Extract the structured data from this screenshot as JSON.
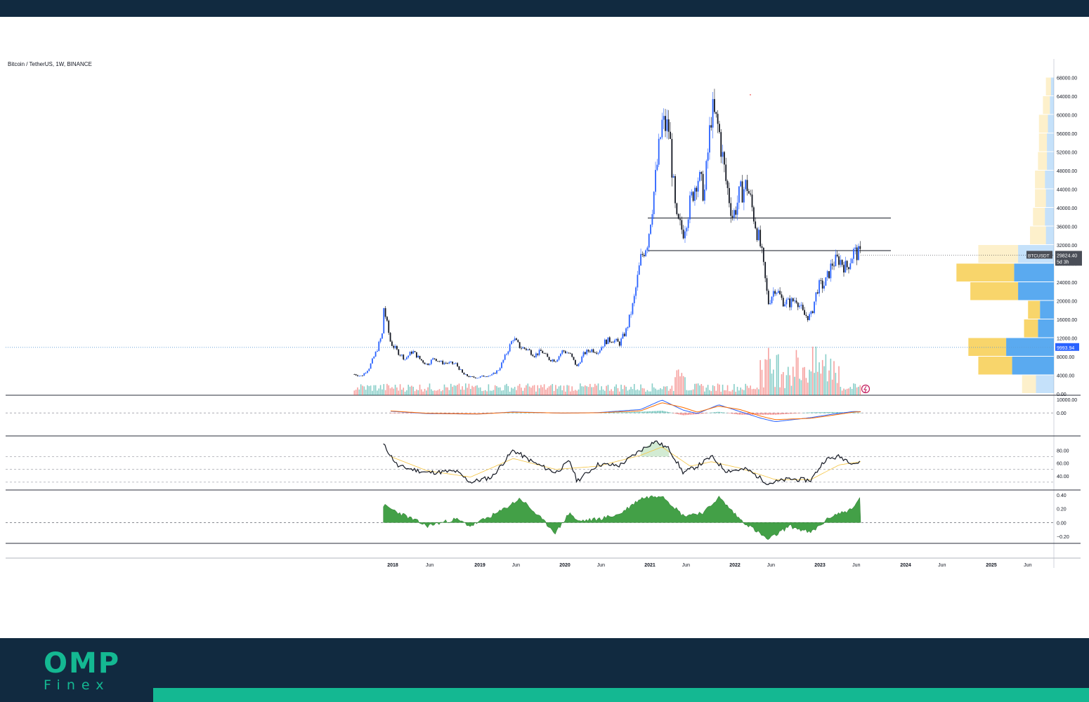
{
  "chart_data": [
    {
      "type": "candlestick",
      "title": "Bitcoin / TetherUS, 1W, BINANCE",
      "symbol": "BTCUSDT",
      "last_price_label": "29824.40",
      "countdown_label": "5d 3h",
      "ref_price_label": "9993.94",
      "ylim": [
        0,
        72000
      ],
      "y_ticks": [
        0,
        4000,
        8000,
        12000,
        16000,
        20000,
        24000,
        28000,
        32000,
        36000,
        40000,
        44000,
        48000,
        52000,
        56000,
        60000,
        64000,
        68000
      ],
      "y_tick_labels": [
        "0.00",
        "4000.00",
        "8000.00",
        "12000.00",
        "16000.00",
        "20000.00",
        "24000.00",
        "28000.00",
        "32000.00",
        "36000.00",
        "40000.00",
        "44000.00",
        "48000.00",
        "52000.00",
        "56000.00",
        "60000.00",
        "64000.00",
        "68000.00"
      ],
      "x_labels": [
        "2018",
        "Jun",
        "2019",
        "Jun",
        "2020",
        "Jun",
        "2021",
        "Jun",
        "2022",
        "Jun",
        "2023",
        "Jun",
        "2024",
        "Jun",
        "2025",
        "Jun"
      ],
      "x_label_dates": [
        "2018-01",
        "2018-06",
        "2019-01",
        "2019-06",
        "2020-01",
        "2020-06",
        "2021-01",
        "2021-06",
        "2022-01",
        "2022-06",
        "2023-01",
        "2023-06",
        "2024-01",
        "2024-06",
        "2025-01",
        "2025-06"
      ],
      "horizontal_lines": [
        37800,
        30800
      ],
      "price_path": [
        [
          "2017-08",
          4200
        ],
        [
          "2017-09",
          3800
        ],
        [
          "2017-10",
          5500
        ],
        [
          "2017-11",
          9000
        ],
        [
          "2017-12",
          13500
        ],
        [
          "2017-12",
          19000
        ],
        [
          "2018-01",
          11000
        ],
        [
          "2018-02",
          9000
        ],
        [
          "2018-03",
          7500
        ],
        [
          "2018-04",
          9200
        ],
        [
          "2018-05",
          7500
        ],
        [
          "2018-06",
          6300
        ],
        [
          "2018-07",
          7700
        ],
        [
          "2018-08",
          6700
        ],
        [
          "2018-09",
          6600
        ],
        [
          "2018-10",
          6400
        ],
        [
          "2018-11",
          4200
        ],
        [
          "2018-12",
          3600
        ],
        [
          "2019-01",
          3500
        ],
        [
          "2019-02",
          3900
        ],
        [
          "2019-03",
          4000
        ],
        [
          "2019-04",
          5300
        ],
        [
          "2019-05",
          8500
        ],
        [
          "2019-06",
          12000
        ],
        [
          "2019-07",
          10000
        ],
        [
          "2019-08",
          9600
        ],
        [
          "2019-09",
          8300
        ],
        [
          "2019-10",
          9200
        ],
        [
          "2019-11",
          7500
        ],
        [
          "2019-12",
          7200
        ],
        [
          "2020-01",
          9300
        ],
        [
          "2020-02",
          8600
        ],
        [
          "2020-03",
          5800
        ],
        [
          "2020-04",
          8700
        ],
        [
          "2020-05",
          9500
        ],
        [
          "2020-06",
          9100
        ],
        [
          "2020-07",
          11300
        ],
        [
          "2020-08",
          11700
        ],
        [
          "2020-09",
          10800
        ],
        [
          "2020-10",
          13800
        ],
        [
          "2020-11",
          19700
        ],
        [
          "2020-12",
          29000
        ],
        [
          "2021-01",
          33000
        ],
        [
          "2021-02",
          45000
        ],
        [
          "2021-03",
          58000
        ],
        [
          "2021-04",
          57000
        ],
        [
          "2021-05",
          37000
        ],
        [
          "2021-06",
          35000
        ],
        [
          "2021-07",
          41000
        ],
        [
          "2021-08",
          47000
        ],
        [
          "2021-09",
          43000
        ],
        [
          "2021-10",
          61000
        ],
        [
          "2021-11",
          57000
        ],
        [
          "2021-12",
          46000
        ],
        [
          "2022-01",
          38000
        ],
        [
          "2022-02",
          43000
        ],
        [
          "2022-03",
          45000
        ],
        [
          "2022-04",
          38000
        ],
        [
          "2022-05",
          31000
        ],
        [
          "2022-06",
          19500
        ],
        [
          "2022-07",
          23000
        ],
        [
          "2022-08",
          20000
        ],
        [
          "2022-09",
          19500
        ],
        [
          "2022-10",
          20500
        ],
        [
          "2022-11",
          17000
        ],
        [
          "2022-12",
          16500
        ],
        [
          "2023-01",
          23000
        ],
        [
          "2023-02",
          23500
        ],
        [
          "2023-03",
          28000
        ],
        [
          "2023-04",
          29000
        ],
        [
          "2023-05",
          27000
        ],
        [
          "2023-06",
          30500
        ],
        [
          "2023-07",
          29824
        ]
      ],
      "volume_profile": [
        {
          "price": 2000,
          "buy": 9000,
          "sell": 7000
        },
        {
          "price": 6000,
          "buy": 21000,
          "sell": 17000
        },
        {
          "price": 10000,
          "buy": 24000,
          "sell": 19000
        },
        {
          "price": 14000,
          "buy": 8000,
          "sell": 7000
        },
        {
          "price": 18000,
          "buy": 7000,
          "sell": 6000
        },
        {
          "price": 22000,
          "buy": 18000,
          "sell": 24000
        },
        {
          "price": 26000,
          "buy": 20000,
          "sell": 29000
        },
        {
          "price": 30000,
          "buy": 18000,
          "sell": 20000
        },
        {
          "price": 34000,
          "buy": 4000,
          "sell": 8000
        },
        {
          "price": 38000,
          "buy": 4500,
          "sell": 6000
        },
        {
          "price": 42000,
          "buy": 4000,
          "sell": 5500
        },
        {
          "price": 46000,
          "buy": 4500,
          "sell": 5000
        },
        {
          "price": 50000,
          "buy": 3500,
          "sell": 4500
        },
        {
          "price": 54000,
          "buy": 3500,
          "sell": 4000
        },
        {
          "price": 58000,
          "buy": 3000,
          "sell": 4500
        },
        {
          "price": 62000,
          "buy": 2000,
          "sell": 3500
        },
        {
          "price": 66000,
          "buy": 1500,
          "sell": 2500
        }
      ],
      "colors": {
        "up": "#2962ff",
        "down": "#131722",
        "vol_up": "#26a69a",
        "vol_down": "#ef5350",
        "profile_buy": "#5aaaf0",
        "profile_sell": "#f8d56b"
      }
    },
    {
      "type": "line",
      "indicator": "MACD",
      "ylim": [
        -16000,
        12000
      ],
      "y_ticks": [
        10000,
        0
      ],
      "y_tick_labels": [
        "10000.00",
        "0.00"
      ],
      "series": [
        {
          "values": [
            [
              "2018-01",
              1200
            ],
            [
              "2018-06",
              -500
            ],
            [
              "2019-01",
              -900
            ],
            [
              "2019-06",
              700
            ],
            [
              "2020-01",
              -200
            ],
            [
              "2020-06",
              200
            ],
            [
              "2020-12",
              2500
            ],
            [
              "2021-03",
              9500
            ],
            [
              "2021-06",
              2000
            ],
            [
              "2021-08",
              -500
            ],
            [
              "2021-11",
              6000
            ],
            [
              "2022-02",
              1000
            ],
            [
              "2022-05",
              -4000
            ],
            [
              "2022-07",
              -6500
            ],
            [
              "2022-12",
              -3500
            ],
            [
              "2023-03",
              -1000
            ],
            [
              "2023-06",
              1000
            ],
            [
              "2023-07",
              900
            ]
          ]
        },
        {
          "values": [
            [
              "2018-01",
              1400
            ],
            [
              "2018-06",
              -300
            ],
            [
              "2019-01",
              -800
            ],
            [
              "2019-06",
              500
            ],
            [
              "2020-01",
              -100
            ],
            [
              "2020-06",
              100
            ],
            [
              "2020-12",
              1500
            ],
            [
              "2021-03",
              7500
            ],
            [
              "2021-06",
              4000
            ],
            [
              "2021-08",
              500
            ],
            [
              "2021-11",
              5000
            ],
            [
              "2022-02",
              2500
            ],
            [
              "2022-05",
              -2500
            ],
            [
              "2022-07",
              -5000
            ],
            [
              "2022-12",
              -4000
            ],
            [
              "2023-03",
              -1800
            ],
            [
              "2023-06",
              600
            ],
            [
              "2023-07",
              800
            ]
          ]
        }
      ]
    },
    {
      "type": "line",
      "indicator": "RSI",
      "ylim": [
        20,
        100
      ],
      "y_ticks": [
        80,
        60,
        40
      ],
      "y_tick_labels": [
        "80.00",
        "60.00",
        "40.00"
      ],
      "bands": [
        70,
        50,
        30
      ],
      "series": [
        {
          "values": [
            [
              "2017-12",
              89
            ],
            [
              "2018-02",
              55
            ],
            [
              "2018-06",
              45
            ],
            [
              "2018-10",
              47
            ],
            [
              "2018-12",
              30
            ],
            [
              "2019-03",
              38
            ],
            [
              "2019-06",
              80
            ],
            [
              "2019-09",
              60
            ],
            [
              "2019-12",
              45
            ],
            [
              "2020-02",
              63
            ],
            [
              "2020-03",
              32
            ],
            [
              "2020-06",
              58
            ],
            [
              "2020-09",
              56
            ],
            [
              "2020-12",
              80
            ],
            [
              "2021-02",
              94
            ],
            [
              "2021-04",
              82
            ],
            [
              "2021-06",
              45
            ],
            [
              "2021-08",
              55
            ],
            [
              "2021-10",
              70
            ],
            [
              "2021-12",
              48
            ],
            [
              "2022-03",
              50
            ],
            [
              "2022-06",
              28
            ],
            [
              "2022-09",
              35
            ],
            [
              "2022-12",
              33
            ],
            [
              "2023-02",
              65
            ],
            [
              "2023-04",
              70
            ],
            [
              "2023-06",
              60
            ],
            [
              "2023-07",
              60
            ]
          ]
        },
        {
          "values": [
            [
              "2018-01",
              70
            ],
            [
              "2018-06",
              48
            ],
            [
              "2018-12",
              38
            ],
            [
              "2019-06",
              67
            ],
            [
              "2019-12",
              50
            ],
            [
              "2020-06",
              55
            ],
            [
              "2020-12",
              72
            ],
            [
              "2021-03",
              85
            ],
            [
              "2021-07",
              55
            ],
            [
              "2021-10",
              62
            ],
            [
              "2022-02",
              52
            ],
            [
              "2022-07",
              34
            ],
            [
              "2022-12",
              34
            ],
            [
              "2023-04",
              57
            ],
            [
              "2023-07",
              62
            ]
          ]
        }
      ]
    },
    {
      "type": "area",
      "indicator": "oscillator",
      "ylim": [
        -0.28,
        0.45
      ],
      "y_ticks": [
        0.4,
        0.2,
        0,
        -0.2
      ],
      "y_tick_labels": [
        "0.40",
        "0.20",
        "0.00",
        "−0.20"
      ],
      "values": [
        [
          "2017-12",
          0.25
        ],
        [
          "2018-03",
          0.1
        ],
        [
          "2018-06",
          -0.05
        ],
        [
          "2018-10",
          0.05
        ],
        [
          "2018-12",
          -0.05
        ],
        [
          "2019-04",
          0.15
        ],
        [
          "2019-07",
          0.35
        ],
        [
          "2019-10",
          0.05
        ],
        [
          "2019-12",
          -0.15
        ],
        [
          "2020-02",
          0.15
        ],
        [
          "2020-03",
          0.02
        ],
        [
          "2020-06",
          0.05
        ],
        [
          "2020-09",
          0.12
        ],
        [
          "2020-12",
          0.35
        ],
        [
          "2021-03",
          0.4
        ],
        [
          "2021-06",
          0.1
        ],
        [
          "2021-09",
          0.15
        ],
        [
          "2021-11",
          0.37
        ],
        [
          "2022-02",
          0.05
        ],
        [
          "2022-06",
          -0.25
        ],
        [
          "2022-09",
          -0.05
        ],
        [
          "2022-12",
          -0.15
        ],
        [
          "2023-03",
          0.1
        ],
        [
          "2023-06",
          0.2
        ],
        [
          "2023-07",
          0.4
        ]
      ]
    }
  ],
  "brand": {
    "name": "OMP",
    "sub": "Finex"
  }
}
